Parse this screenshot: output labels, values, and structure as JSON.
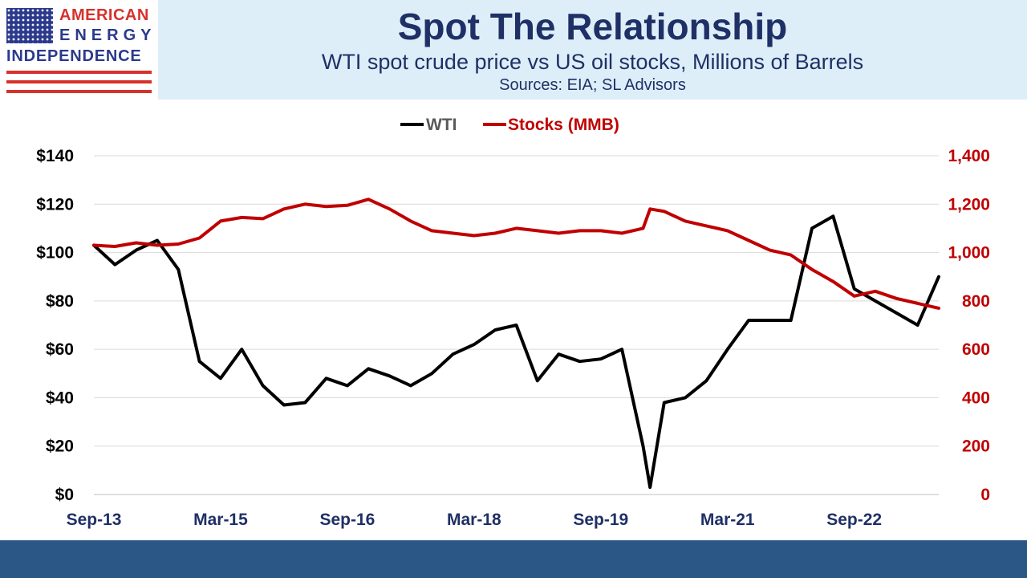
{
  "logo": {
    "line1": "AMERICAN",
    "line2": "ENERGY",
    "line3": "INDEPENDENCE"
  },
  "header": {
    "title": "Spot The Relationship",
    "subtitle": "WTI spot crude price vs US oil stocks, Millions of Barrels",
    "source": "Sources: EIA; SL Advisors"
  },
  "colors": {
    "wti": "#000000",
    "stocks": "#c00000",
    "left_axis_text": "#000000",
    "right_axis_text": "#c00000",
    "x_axis_text": "#1f3066",
    "header_band": "#ddeef9",
    "footer_bar": "#2a5785"
  },
  "chart_data": {
    "type": "line",
    "title": "Spot The Relationship",
    "subtitle": "WTI spot crude price vs US oil stocks, Millions of Barrels",
    "legend_position": "top-center",
    "grid": true,
    "x": [
      "2013-09",
      "2013-12",
      "2014-03",
      "2014-06",
      "2014-09",
      "2014-12",
      "2015-03",
      "2015-06",
      "2015-09",
      "2015-12",
      "2016-03",
      "2016-06",
      "2016-09",
      "2016-12",
      "2017-03",
      "2017-06",
      "2017-09",
      "2017-12",
      "2018-03",
      "2018-06",
      "2018-09",
      "2018-12",
      "2019-03",
      "2019-06",
      "2019-09",
      "2019-12",
      "2020-03",
      "2020-04",
      "2020-06",
      "2020-09",
      "2020-12",
      "2021-03",
      "2021-06",
      "2021-09",
      "2021-12",
      "2022-03",
      "2022-06",
      "2022-09",
      "2022-12",
      "2023-03",
      "2023-06",
      "2023-09"
    ],
    "x_ticks": [
      "Sep-13",
      "Mar-15",
      "Sep-16",
      "Mar-18",
      "Sep-19",
      "Mar-21",
      "Sep-22"
    ],
    "series": [
      {
        "name": "WTI",
        "axis": "left",
        "values": [
          103,
          95,
          101,
          105,
          93,
          55,
          48,
          60,
          45,
          37,
          38,
          48,
          45,
          52,
          49,
          45,
          50,
          58,
          62,
          68,
          70,
          47,
          58,
          55,
          56,
          60,
          20,
          3,
          38,
          40,
          47,
          60,
          72,
          72,
          72,
          110,
          115,
          85,
          80,
          75,
          70,
          90
        ]
      },
      {
        "name": "Stocks (MMB)",
        "axis": "right",
        "values": [
          1030,
          1025,
          1040,
          1030,
          1035,
          1060,
          1130,
          1145,
          1140,
          1180,
          1200,
          1190,
          1195,
          1220,
          1180,
          1130,
          1090,
          1080,
          1070,
          1080,
          1100,
          1090,
          1080,
          1090,
          1090,
          1080,
          1100,
          1180,
          1170,
          1130,
          1110,
          1090,
          1050,
          1010,
          990,
          930,
          880,
          820,
          840,
          810,
          790,
          770
        ]
      }
    ],
    "y_left": {
      "lim": [
        0,
        140
      ],
      "ticks": [
        "$0",
        "$20",
        "$40",
        "$60",
        "$80",
        "$100",
        "$120",
        "$140"
      ]
    },
    "y_right": {
      "lim": [
        0,
        1400
      ],
      "ticks": [
        "0",
        "200",
        "400",
        "600",
        "800",
        "1,000",
        "1,200",
        "1,400"
      ]
    },
    "x_range": [
      "2013-09",
      "2023-09"
    ]
  }
}
